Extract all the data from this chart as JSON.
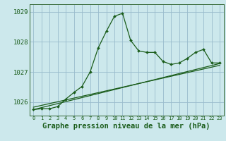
{
  "title": "Graphe pression niveau de la mer (hPa)",
  "bg_color": "#cce8ec",
  "grid_color": "#99bbcc",
  "line_color": "#1a5c1a",
  "xlim": [
    -0.5,
    23.5
  ],
  "ylim": [
    1025.55,
    1029.25
  ],
  "yticks": [
    1026,
    1027,
    1028,
    1029
  ],
  "xticks": [
    0,
    1,
    2,
    3,
    4,
    5,
    6,
    7,
    8,
    9,
    10,
    11,
    12,
    13,
    14,
    15,
    16,
    17,
    18,
    19,
    20,
    21,
    22,
    23
  ],
  "main_x": [
    0,
    1,
    2,
    3,
    4,
    5,
    6,
    7,
    8,
    9,
    10,
    11,
    12,
    13,
    14,
    15,
    16,
    17,
    18,
    19,
    20,
    21,
    22,
    23
  ],
  "main_y": [
    1025.75,
    1025.78,
    1025.78,
    1025.85,
    1026.1,
    1026.32,
    1026.52,
    1027.0,
    1027.8,
    1028.35,
    1028.85,
    1028.95,
    1028.05,
    1027.7,
    1027.65,
    1027.65,
    1027.35,
    1027.25,
    1027.3,
    1027.45,
    1027.65,
    1027.75,
    1027.3,
    1027.3
  ],
  "trend1_x": [
    0,
    23
  ],
  "trend1_y": [
    1025.75,
    1027.28
  ],
  "trend2_x": [
    0,
    23
  ],
  "trend2_y": [
    1025.83,
    1027.22
  ],
  "ytick_fontsize": 6.5,
  "xtick_fontsize": 5.0,
  "xlabel_fontsize": 7.5
}
